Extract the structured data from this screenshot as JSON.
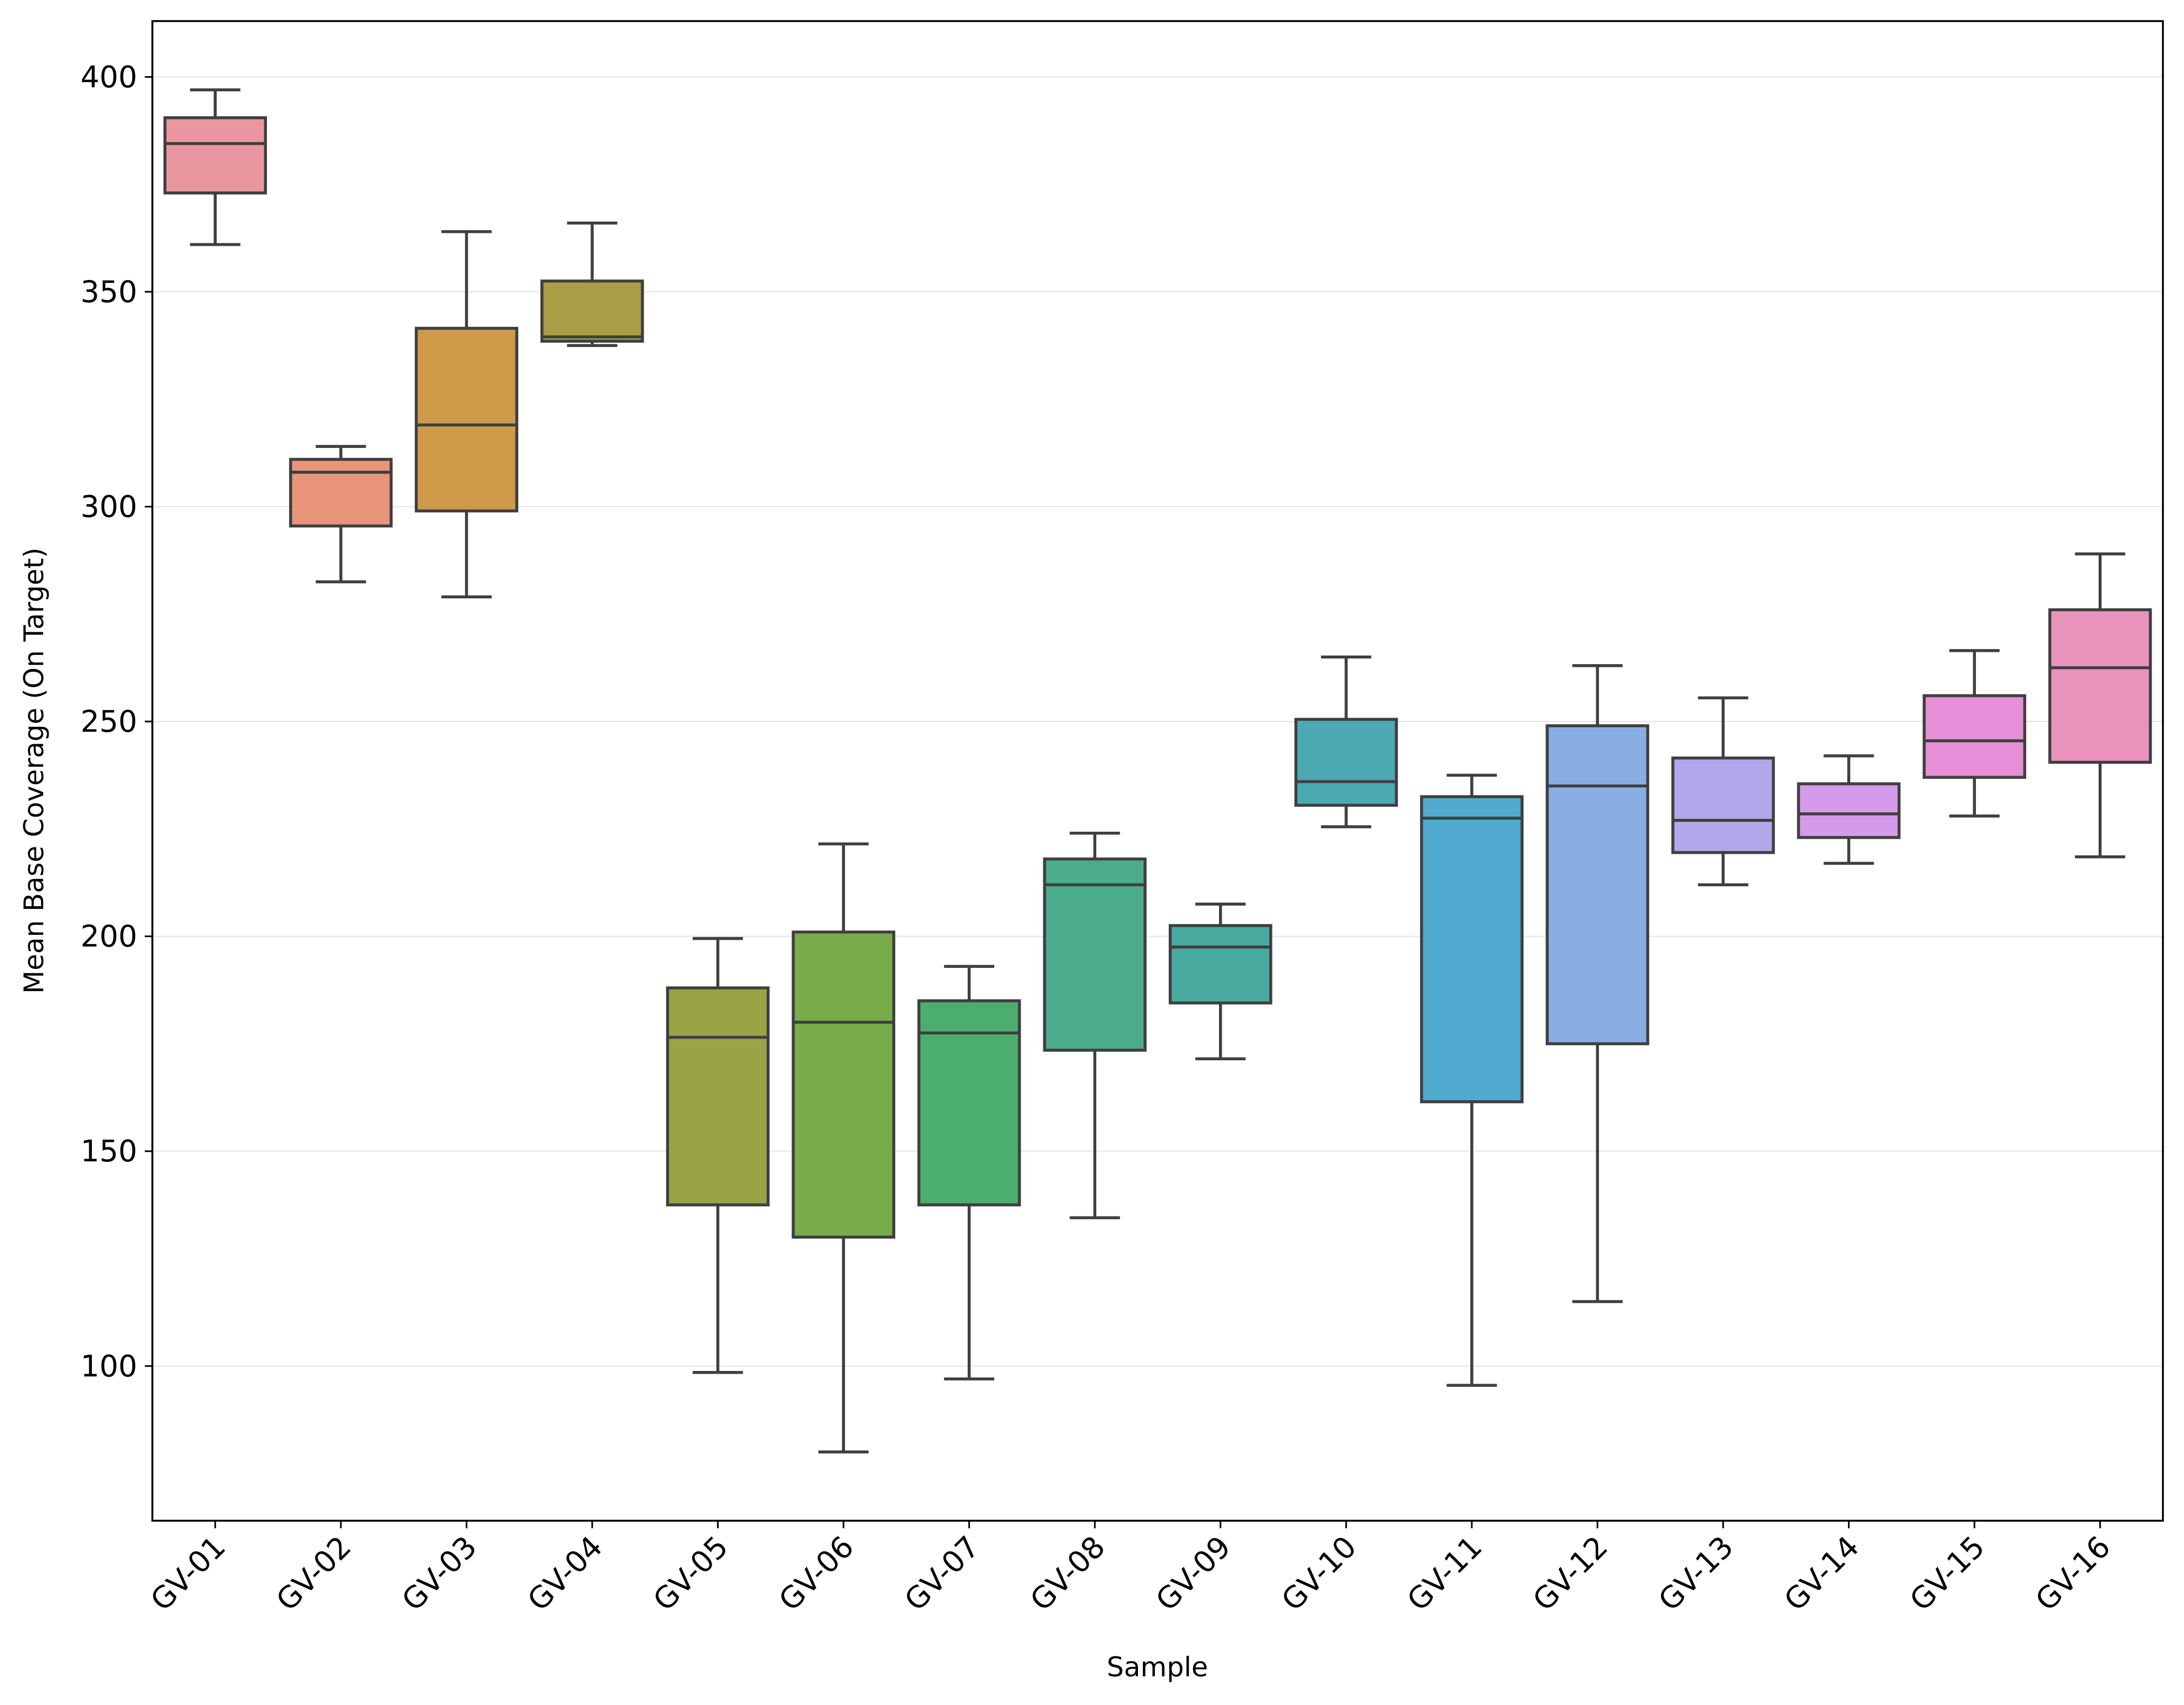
{
  "chart_data": {
    "type": "box",
    "title": "",
    "xlabel": "Sample",
    "ylabel": "Mean Base Coverage (On Target)",
    "ylim": [
      64,
      413
    ],
    "yticks": [
      100,
      150,
      200,
      250,
      300,
      350,
      400
    ],
    "grid": "horizontal",
    "legend": "none",
    "categories": [
      "GV-01",
      "GV-02",
      "GV-03",
      "GV-04",
      "GV-05",
      "GV-06",
      "GV-07",
      "GV-08",
      "GV-09",
      "GV-10",
      "GV-11",
      "GV-12",
      "GV-13",
      "GV-14",
      "GV-15",
      "GV-16"
    ],
    "boxes": [
      {
        "category": "GV-01",
        "whisker_low": 361,
        "q1": 373,
        "median": 384.5,
        "q3": 390.5,
        "whisker_high": 397,
        "color": "#e9969f"
      },
      {
        "category": "GV-02",
        "whisker_low": 282.5,
        "q1": 295.5,
        "median": 308,
        "q3": 311,
        "whisker_high": 314,
        "color": "#e8957a"
      },
      {
        "category": "GV-03",
        "whisker_low": 279,
        "q1": 299,
        "median": 319,
        "q3": 341.5,
        "whisker_high": 364,
        "color": "#ce9a4a"
      },
      {
        "category": "GV-04",
        "whisker_low": 337.5,
        "q1": 338.5,
        "median": 339.5,
        "q3": 352.5,
        "whisker_high": 366,
        "color": "#a99d46"
      },
      {
        "category": "GV-05",
        "whisker_low": 98.5,
        "q1": 137.5,
        "median": 176.5,
        "q3": 188,
        "whisker_high": 199.5,
        "color": "#98a446"
      },
      {
        "category": "GV-06",
        "whisker_low": 80,
        "q1": 130,
        "median": 180,
        "q3": 201,
        "whisker_high": 221.5,
        "color": "#78ac4a"
      },
      {
        "category": "GV-07",
        "whisker_low": 97,
        "q1": 137.5,
        "median": 177.5,
        "q3": 185,
        "whisker_high": 193,
        "color": "#4bae6e"
      },
      {
        "category": "GV-08",
        "whisker_low": 134.5,
        "q1": 173.5,
        "median": 212,
        "q3": 218,
        "whisker_high": 224,
        "color": "#4aac8c"
      },
      {
        "category": "GV-09",
        "whisker_low": 171.5,
        "q1": 184.5,
        "median": 197.5,
        "q3": 202.5,
        "whisker_high": 207.5,
        "color": "#49aaa0"
      },
      {
        "category": "GV-10",
        "whisker_low": 225.5,
        "q1": 230.5,
        "median": 236,
        "q3": 250.5,
        "whisker_high": 265,
        "color": "#4caab3"
      },
      {
        "category": "GV-11",
        "whisker_low": 95.5,
        "q1": 161.5,
        "median": 227.5,
        "q3": 232.5,
        "whisker_high": 237.5,
        "color": "#51aacf"
      },
      {
        "category": "GV-12",
        "whisker_low": 115,
        "q1": 175,
        "median": 235,
        "q3": 249,
        "whisker_high": 263,
        "color": "#88aee4"
      },
      {
        "category": "GV-13",
        "whisker_low": 212,
        "q1": 219.5,
        "median": 227,
        "q3": 241.5,
        "whisker_high": 255.5,
        "color": "#b4a6ea"
      },
      {
        "category": "GV-14",
        "whisker_low": 217,
        "q1": 223,
        "median": 228.5,
        "q3": 235.5,
        "whisker_high": 242,
        "color": "#d59aea"
      },
      {
        "category": "GV-15",
        "whisker_low": 228,
        "q1": 237,
        "median": 245.5,
        "q3": 256,
        "whisker_high": 266.5,
        "color": "#e78ed8"
      },
      {
        "category": "GV-16",
        "whisker_low": 218.5,
        "q1": 240.5,
        "median": 262.5,
        "q3": 276,
        "whisker_high": 289,
        "color": "#e892bc"
      }
    ]
  }
}
